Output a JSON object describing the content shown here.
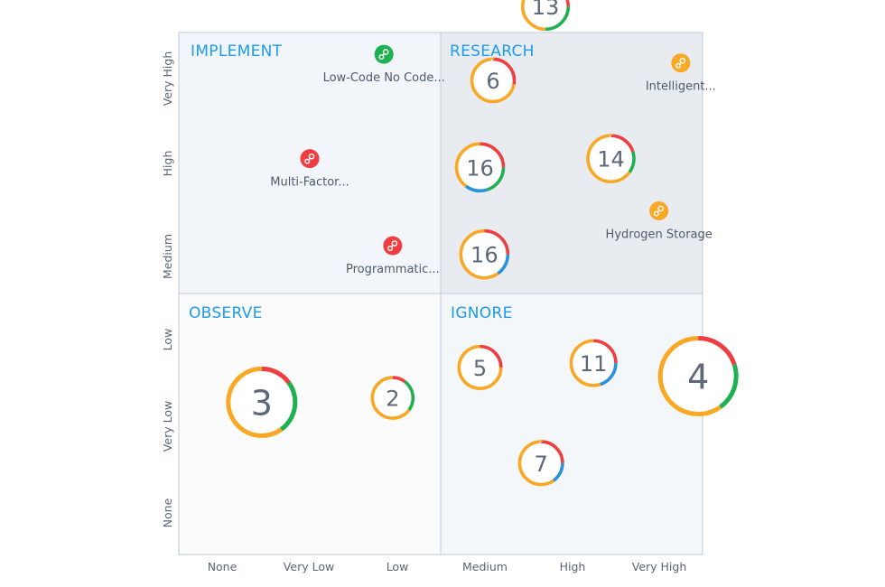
{
  "chart_data": {
    "type": "scatter",
    "x_categories": [
      "None",
      "Very Low",
      "Low",
      "Medium",
      "High",
      "Very High"
    ],
    "y_categories": [
      "None",
      "Very Low",
      "Low",
      "Medium",
      "High",
      "Very High"
    ],
    "quadrants": [
      {
        "key": "implement",
        "label": "IMPLEMENT"
      },
      {
        "key": "research",
        "label": "RESEARCH"
      },
      {
        "key": "observe",
        "label": "OBSERVE"
      },
      {
        "key": "ignore",
        "label": "IGNORE"
      }
    ],
    "colors": {
      "orange": "#f9a825",
      "red": "#ef3e42",
      "green": "#1fb150",
      "blue": "#2a92dd",
      "implement_bg": "#f2f6fa",
      "research_bg": "#e8ecf0",
      "observe_bg": "#fbfbfc",
      "ignore_bg": "#f4f7f9",
      "border": "#c9d3dc"
    },
    "clusters": [
      {
        "count": "13",
        "x": 4.2,
        "y": 6.3,
        "segments": {
          "orange": 0.5,
          "red": 0.25,
          "green": 0.25
        }
      },
      {
        "count": "6",
        "x": 3.6,
        "y": 5.45,
        "segments": {
          "orange": 0.72,
          "red": 0.28
        }
      },
      {
        "count": "16",
        "x": 3.45,
        "y": 4.45,
        "segments": {
          "orange": 0.4,
          "red": 0.25,
          "green": 0.2,
          "blue": 0.15
        }
      },
      {
        "count": "14",
        "x": 4.95,
        "y": 4.55,
        "segments": {
          "orange": 0.65,
          "red": 0.2,
          "green": 0.15
        }
      },
      {
        "count": "16",
        "x": 3.5,
        "y": 3.45,
        "segments": {
          "orange": 0.6,
          "red": 0.25,
          "blue": 0.15
        }
      },
      {
        "count": "3",
        "x": 0.95,
        "y": 1.75,
        "segments": {
          "orange": 0.6,
          "red": 0.15,
          "green": 0.25
        }
      },
      {
        "count": "2",
        "x": 2.45,
        "y": 1.8,
        "segments": {
          "orange": 0.65,
          "red": 0.1,
          "green": 0.25
        }
      },
      {
        "count": "5",
        "x": 3.45,
        "y": 2.15,
        "segments": {
          "orange": 0.75,
          "red": 0.25
        }
      },
      {
        "count": "11",
        "x": 4.75,
        "y": 2.2,
        "segments": {
          "orange": 0.55,
          "red": 0.25,
          "blue": 0.2
        }
      },
      {
        "count": "4",
        "x": 5.95,
        "y": 2.05,
        "segments": {
          "orange": 0.6,
          "red": 0.2,
          "green": 0.2
        }
      },
      {
        "count": "7",
        "x": 4.15,
        "y": 1.05,
        "segments": {
          "orange": 0.6,
          "red": 0.25,
          "blue": 0.15
        }
      }
    ],
    "points": [
      {
        "label": "Low-Code No Code...",
        "x": 2.35,
        "y": 5.75,
        "color": "green"
      },
      {
        "label": "Intelligent...",
        "x": 5.75,
        "y": 5.65,
        "color": "orange"
      },
      {
        "label": "Multi-Factor...",
        "x": 1.5,
        "y": 4.55,
        "color": "red"
      },
      {
        "label": "Hydrogen Storage",
        "x": 5.5,
        "y": 3.95,
        "color": "orange"
      },
      {
        "label": "Programmatic...",
        "x": 2.45,
        "y": 3.55,
        "color": "red"
      }
    ]
  }
}
